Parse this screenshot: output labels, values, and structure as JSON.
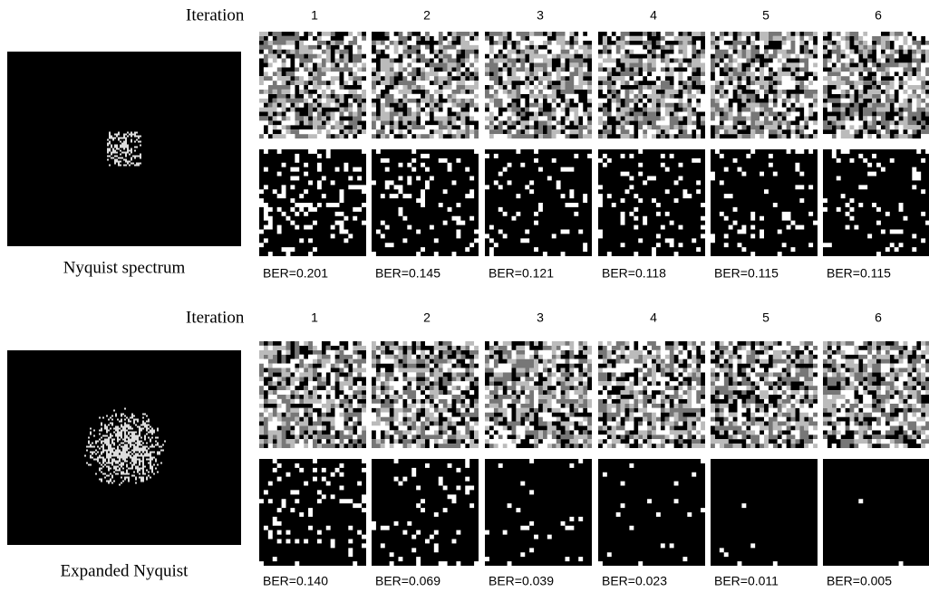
{
  "panels": [
    {
      "label": "Nyquist spectrum",
      "iteration_label": "Iteration",
      "iterations": [
        "1",
        "2",
        "3",
        "4",
        "5",
        "6"
      ],
      "ber": [
        "BER=0.201",
        "BER=0.145",
        "BER=0.121",
        "BER=0.118",
        "BER=0.115",
        "BER=0.115"
      ]
    },
    {
      "label": "Expanded Nyquist",
      "iteration_label": "Iteration",
      "iterations": [
        "1",
        "2",
        "3",
        "4",
        "5",
        "6"
      ],
      "ber": [
        "BER=0.140",
        "BER=0.069",
        "BER=0.039",
        "BER=0.023",
        "BER=0.011",
        "BER=0.005"
      ]
    }
  ]
}
